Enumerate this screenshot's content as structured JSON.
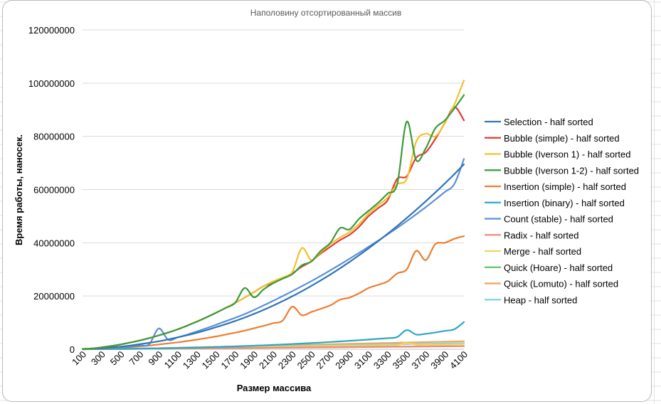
{
  "chart_data": {
    "type": "line",
    "title": "Наполовину отсортированный массив",
    "xlabel": "Размер массива",
    "ylabel": "Время работы, наносек.",
    "ylim": [
      0,
      120000000
    ],
    "y_ticks": [
      "0",
      "20000000",
      "40000000",
      "60000000",
      "80000000",
      "100000000",
      "120000000"
    ],
    "x": [
      100,
      200,
      300,
      400,
      500,
      600,
      700,
      800,
      900,
      1000,
      1100,
      1200,
      1300,
      1400,
      1500,
      1600,
      1700,
      1800,
      1900,
      2000,
      2100,
      2200,
      2300,
      2400,
      2500,
      2600,
      2700,
      2800,
      2900,
      3000,
      3100,
      3200,
      3300,
      3400,
      3500,
      3600,
      3700,
      3800,
      3900,
      4000,
      4100
    ],
    "x_tick_labels": [
      "100",
      "300",
      "500",
      "700",
      "900",
      "1100",
      "1300",
      "1500",
      "1700",
      "1900",
      "2100",
      "2300",
      "2500",
      "2700",
      "2900",
      "3100",
      "3300",
      "3500",
      "3700",
      "3900",
      "4100"
    ],
    "grid": "horizontal",
    "legend_position": "right",
    "series": [
      {
        "name": "Selection - half sorted",
        "color": "#2e75b6",
        "values": [
          50000,
          200000,
          400000,
          700000,
          1000000,
          1400000,
          1900000,
          2400000,
          3000000,
          3700000,
          4500000,
          5300000,
          6200000,
          7200000,
          8300000,
          9400000,
          10600000,
          11900000,
          13300000,
          14800000,
          16400000,
          18100000,
          19900000,
          21800000,
          23800000,
          25900000,
          28100000,
          30400000,
          32800000,
          35300000,
          37900000,
          40600000,
          43400000,
          46300000,
          49300000,
          52400000,
          55600000,
          58900000,
          62300000,
          65800000,
          69500000
        ]
      },
      {
        "name": "Bubble (simple) - half sorted",
        "color": "#e03c31",
        "values": [
          100000,
          300000,
          700000,
          1200000,
          1800000,
          2500000,
          3300000,
          4200000,
          5200000,
          6300000,
          7500000,
          8900000,
          10400000,
          12000000,
          13700000,
          15500000,
          17400000,
          19400000,
          21500000,
          23700000,
          25000000,
          26800000,
          28500000,
          31000000,
          33000000,
          36000000,
          38500000,
          41000000,
          43000000,
          46000000,
          50000000,
          53000000,
          56000000,
          64000000,
          65000000,
          72000000,
          74000000,
          79000000,
          85000000,
          91000000,
          86000000
        ]
      },
      {
        "name": "Bubble (Iverson 1) - half sorted",
        "color": "#f2c12e",
        "values": [
          100000,
          300000,
          700000,
          1200000,
          1800000,
          2500000,
          3300000,
          4200000,
          5200000,
          6300000,
          7500000,
          8900000,
          10400000,
          12000000,
          13700000,
          15500000,
          17400000,
          19400000,
          21500000,
          23700000,
          25500000,
          27000000,
          29000000,
          38000000,
          33500000,
          36500000,
          39500000,
          42000000,
          44000000,
          47000000,
          51000000,
          54000000,
          57000000,
          62000000,
          64000000,
          78000000,
          81000000,
          80000000,
          85000000,
          92000000,
          101000000
        ]
      },
      {
        "name": "Bubble (Iverson 1-2) - half sorted",
        "color": "#3a9b3a",
        "values": [
          100000,
          300000,
          700000,
          1200000,
          1800000,
          2500000,
          3300000,
          4200000,
          5200000,
          6300000,
          7500000,
          8900000,
          10400000,
          12000000,
          13700000,
          15500000,
          17400000,
          23000000,
          19500000,
          22500000,
          24800000,
          26500000,
          28200000,
          31500000,
          33000000,
          37000000,
          40000000,
          45500000,
          45000000,
          49000000,
          52000000,
          55000000,
          58500000,
          62000000,
          85500000,
          71000000,
          75500000,
          83000000,
          86000000,
          90500000,
          95500000
        ]
      },
      {
        "name": "Insertion (simple) - half sorted",
        "color": "#ed7d31",
        "values": [
          20000,
          100000,
          200000,
          400000,
          600000,
          800000,
          1100000,
          1400000,
          1800000,
          2200000,
          2600000,
          3100000,
          3600000,
          4200000,
          4800000,
          5500000,
          6200000,
          7000000,
          7900000,
          8800000,
          9800000,
          10800000,
          16000000,
          12800000,
          14000000,
          15200000,
          16500000,
          18600000,
          19400000,
          21000000,
          23000000,
          24200000,
          25500000,
          28500000,
          30000000,
          37000000,
          33500000,
          39500000,
          40000000,
          41500000,
          42500000
        ]
      },
      {
        "name": "Insertion (binary) - half sorted",
        "color": "#2ea7c4",
        "values": [
          10000,
          20000,
          50000,
          80000,
          120000,
          160000,
          210000,
          270000,
          330000,
          400000,
          480000,
          560000,
          650000,
          750000,
          850000,
          960000,
          1080000,
          1200000,
          1340000,
          1480000,
          1630000,
          1790000,
          1960000,
          2140000,
          2330000,
          2520000,
          2730000,
          2940000,
          3170000,
          3400000,
          3640000,
          3890000,
          4150000,
          4600000,
          7200000,
          5500000,
          5800000,
          6300000,
          6900000,
          7500000,
          10200000
        ]
      },
      {
        "name": "Count (stable) - half sorted",
        "color": "#5b8fd6",
        "values": [
          20000,
          100000,
          250000,
          450000,
          700000,
          1000000,
          1400000,
          1900000,
          7800000,
          3500000,
          4500000,
          5500000,
          6700000,
          7900000,
          9200000,
          10500000,
          11800000,
          13200000,
          14800000,
          16500000,
          18200000,
          20000000,
          21800000,
          23700000,
          25600000,
          27600000,
          29700000,
          31800000,
          34000000,
          36200000,
          38500000,
          40800000,
          43200000,
          45600000,
          48100000,
          50700000,
          53400000,
          56200000,
          59100000,
          62100000,
          71500000
        ]
      },
      {
        "name": "Radix - half sorted",
        "color": "#f08a7e",
        "values": [
          50000,
          60000,
          80000,
          100000,
          120000,
          150000,
          180000,
          210000,
          240000,
          270000,
          300000,
          330000,
          360000,
          390000,
          420000,
          450000,
          480000,
          510000,
          540000,
          570000,
          600000,
          630000,
          660000,
          690000,
          720000,
          750000,
          780000,
          810000,
          840000,
          870000,
          900000,
          930000,
          960000,
          990000,
          1020000,
          1050000,
          1080000,
          1110000,
          1140000,
          1170000,
          1200000
        ]
      },
      {
        "name": "Merge - half sorted",
        "color": "#f5d556",
        "values": [
          20000,
          40000,
          70000,
          100000,
          130000,
          170000,
          210000,
          250000,
          300000,
          350000,
          400000,
          450000,
          500000,
          550000,
          600000,
          650000,
          700000,
          750000,
          800000,
          850000,
          900000,
          950000,
          1000000,
          1050000,
          1100000,
          1150000,
          1200000,
          1250000,
          1300000,
          1350000,
          1400000,
          1450000,
          1500000,
          1550000,
          2300000,
          1650000,
          1700000,
          1750000,
          1800000,
          1850000,
          1900000
        ]
      },
      {
        "name": "Quick (Hoare) - half sorted",
        "color": "#6bbf6b",
        "values": [
          10000,
          20000,
          40000,
          60000,
          80000,
          100000,
          130000,
          160000,
          190000,
          220000,
          250000,
          280000,
          310000,
          340000,
          370000,
          400000,
          430000,
          460000,
          490000,
          520000,
          550000,
          580000,
          610000,
          640000,
          670000,
          700000,
          730000,
          760000,
          790000,
          820000,
          850000,
          880000,
          910000,
          940000,
          970000,
          1000000,
          1030000,
          1060000,
          1090000,
          1120000,
          1150000
        ]
      },
      {
        "name": "Quick (Lomuto) - half sorted",
        "color": "#f0a560",
        "values": [
          20000,
          50000,
          90000,
          140000,
          190000,
          250000,
          310000,
          380000,
          450000,
          520000,
          600000,
          680000,
          760000,
          840000,
          920000,
          1000000,
          1080000,
          1160000,
          1240000,
          1320000,
          1400000,
          1480000,
          1560000,
          1640000,
          1720000,
          1800000,
          1880000,
          1960000,
          2040000,
          2120000,
          2200000,
          2280000,
          2360000,
          2440000,
          2520000,
          2600000,
          2680000,
          2760000,
          2840000,
          2920000,
          3000000
        ]
      },
      {
        "name": "Heap - half sorted",
        "color": "#7fd3e0",
        "values": [
          20000,
          50000,
          90000,
          130000,
          180000,
          230000,
          280000,
          330000,
          380000,
          430000,
          490000,
          550000,
          610000,
          670000,
          730000,
          790000,
          850000,
          910000,
          970000,
          1030000,
          1090000,
          1150000,
          1210000,
          1270000,
          1330000,
          1390000,
          1450000,
          1510000,
          1570000,
          1630000,
          1690000,
          1750000,
          1810000,
          1870000,
          1930000,
          1990000,
          2050000,
          2110000,
          2170000,
          2230000,
          2290000
        ]
      }
    ]
  }
}
